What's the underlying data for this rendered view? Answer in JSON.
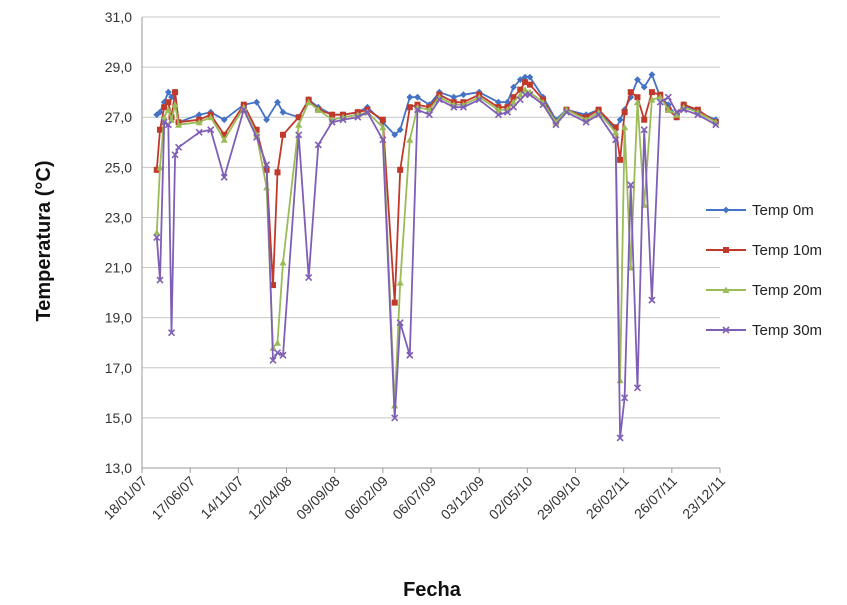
{
  "chart_data": {
    "type": "line",
    "title": "",
    "xlabel": "Fecha",
    "ylabel": "Temperatura (°C)",
    "ylim": [
      13.0,
      31.0
    ],
    "y_ticks": [
      "13,0",
      "15,0",
      "17,0",
      "19,0",
      "21,0",
      "23,0",
      "25,0",
      "27,0",
      "29,0",
      "31,0"
    ],
    "x_tick_labels": [
      "18/01/07",
      "17/06/07",
      "14/11/07",
      "12/04/08",
      "09/09/08",
      "06/02/09",
      "06/07/09",
      "03/12/09",
      "02/05/10",
      "29/09/10",
      "26/02/11",
      "26/07/11",
      "23/12/11"
    ],
    "x_ticks": [
      "2007-01-18",
      "2007-06-17",
      "2007-11-14",
      "2008-04-12",
      "2008-09-09",
      "2009-02-06",
      "2009-07-06",
      "2009-12-03",
      "2010-05-02",
      "2010-09-29",
      "2011-02-26",
      "2011-07-26",
      "2011-12-23"
    ],
    "xlim": [
      "2007-01-18",
      "2011-12-23"
    ],
    "grid": "horizontal",
    "legend_position": "right",
    "series": [
      {
        "name": "Temp 0m",
        "color": "#4472C4",
        "marker": "diamond",
        "points": [
          [
            "2007-03-05",
            27.1
          ],
          [
            "2007-03-15",
            27.2
          ],
          [
            "2007-03-28",
            27.6
          ],
          [
            "2007-04-10",
            28.0
          ],
          [
            "2007-04-20",
            27.8
          ],
          [
            "2007-05-01",
            28.0
          ],
          [
            "2007-05-12",
            26.8
          ],
          [
            "2007-07-15",
            27.1
          ],
          [
            "2007-08-20",
            27.2
          ],
          [
            "2007-10-01",
            26.9
          ],
          [
            "2007-12-01",
            27.5
          ],
          [
            "2008-01-10",
            27.6
          ],
          [
            "2008-02-10",
            26.9
          ],
          [
            "2008-03-15",
            27.6
          ],
          [
            "2008-04-01",
            27.2
          ],
          [
            "2008-05-20",
            27.0
          ],
          [
            "2008-06-20",
            27.7
          ],
          [
            "2008-07-20",
            27.4
          ],
          [
            "2008-09-01",
            27.1
          ],
          [
            "2008-10-05",
            27.1
          ],
          [
            "2008-11-20",
            27.2
          ],
          [
            "2008-12-20",
            27.4
          ],
          [
            "2009-02-06",
            26.8
          ],
          [
            "2009-03-15",
            26.3
          ],
          [
            "2009-04-01",
            26.5
          ],
          [
            "2009-05-01",
            27.8
          ],
          [
            "2009-05-25",
            27.8
          ],
          [
            "2009-07-01",
            27.5
          ],
          [
            "2009-08-01",
            28.0
          ],
          [
            "2009-09-15",
            27.8
          ],
          [
            "2009-10-15",
            27.9
          ],
          [
            "2009-12-03",
            28.0
          ],
          [
            "2010-02-01",
            27.6
          ],
          [
            "2010-03-01",
            27.6
          ],
          [
            "2010-03-20",
            28.2
          ],
          [
            "2010-04-10",
            28.5
          ],
          [
            "2010-04-25",
            28.6
          ],
          [
            "2010-05-10",
            28.6
          ],
          [
            "2010-06-20",
            27.8
          ],
          [
            "2010-07-30",
            26.9
          ],
          [
            "2010-09-01",
            27.3
          ],
          [
            "2010-11-01",
            27.1
          ],
          [
            "2010-12-10",
            27.3
          ],
          [
            "2011-02-01",
            26.5
          ],
          [
            "2011-02-15",
            26.9
          ],
          [
            "2011-03-01",
            27.3
          ],
          [
            "2011-03-20",
            27.8
          ],
          [
            "2011-04-10",
            28.5
          ],
          [
            "2011-05-01",
            28.2
          ],
          [
            "2011-05-25",
            28.7
          ],
          [
            "2011-06-20",
            27.8
          ],
          [
            "2011-07-15",
            27.5
          ],
          [
            "2011-08-10",
            27.0
          ],
          [
            "2011-09-01",
            27.5
          ],
          [
            "2011-10-15",
            27.2
          ],
          [
            "2011-12-10",
            26.9
          ]
        ]
      },
      {
        "name": "Temp 10m",
        "color": "#C0392B",
        "marker": "square",
        "points": [
          [
            "2007-03-05",
            24.9
          ],
          [
            "2007-03-15",
            26.5
          ],
          [
            "2007-03-28",
            27.4
          ],
          [
            "2007-04-10",
            27.6
          ],
          [
            "2007-04-20",
            27.0
          ],
          [
            "2007-05-01",
            28.0
          ],
          [
            "2007-05-12",
            26.8
          ],
          [
            "2007-07-15",
            26.9
          ],
          [
            "2007-08-20",
            27.1
          ],
          [
            "2007-10-01",
            26.3
          ],
          [
            "2007-12-01",
            27.5
          ],
          [
            "2008-01-10",
            26.5
          ],
          [
            "2008-02-10",
            24.9
          ],
          [
            "2008-03-01",
            20.3
          ],
          [
            "2008-03-15",
            24.8
          ],
          [
            "2008-04-01",
            26.3
          ],
          [
            "2008-05-20",
            27.0
          ],
          [
            "2008-06-20",
            27.7
          ],
          [
            "2008-07-20",
            27.3
          ],
          [
            "2008-09-01",
            27.1
          ],
          [
            "2008-10-05",
            27.1
          ],
          [
            "2008-11-20",
            27.2
          ],
          [
            "2008-12-20",
            27.3
          ],
          [
            "2009-02-06",
            26.9
          ],
          [
            "2009-03-15",
            19.6
          ],
          [
            "2009-04-01",
            24.9
          ],
          [
            "2009-05-01",
            27.4
          ],
          [
            "2009-05-25",
            27.5
          ],
          [
            "2009-07-01",
            27.4
          ],
          [
            "2009-08-01",
            27.9
          ],
          [
            "2009-09-15",
            27.6
          ],
          [
            "2009-10-15",
            27.6
          ],
          [
            "2009-12-03",
            27.9
          ],
          [
            "2010-02-01",
            27.4
          ],
          [
            "2010-03-01",
            27.4
          ],
          [
            "2010-03-20",
            27.8
          ],
          [
            "2010-04-10",
            28.1
          ],
          [
            "2010-04-25",
            28.4
          ],
          [
            "2010-05-10",
            28.3
          ],
          [
            "2010-06-20",
            27.7
          ],
          [
            "2010-07-30",
            26.8
          ],
          [
            "2010-09-01",
            27.3
          ],
          [
            "2010-11-01",
            27.0
          ],
          [
            "2010-12-10",
            27.3
          ],
          [
            "2011-02-01",
            26.6
          ],
          [
            "2011-02-15",
            25.3
          ],
          [
            "2011-03-01",
            27.2
          ],
          [
            "2011-03-20",
            28.0
          ],
          [
            "2011-04-10",
            27.8
          ],
          [
            "2011-05-01",
            26.9
          ],
          [
            "2011-05-25",
            28.0
          ],
          [
            "2011-06-20",
            27.9
          ],
          [
            "2011-07-15",
            27.3
          ],
          [
            "2011-08-10",
            27.0
          ],
          [
            "2011-09-01",
            27.5
          ],
          [
            "2011-10-15",
            27.3
          ],
          [
            "2011-12-10",
            26.8
          ]
        ]
      },
      {
        "name": "Temp 20m",
        "color": "#9BBB59",
        "marker": "triangle",
        "points": [
          [
            "2007-03-05",
            22.4
          ],
          [
            "2007-03-15",
            25.0
          ],
          [
            "2007-03-28",
            27.0
          ],
          [
            "2007-04-10",
            27.3
          ],
          [
            "2007-04-20",
            26.9
          ],
          [
            "2007-05-01",
            27.5
          ],
          [
            "2007-05-12",
            26.7
          ],
          [
            "2007-07-15",
            26.8
          ],
          [
            "2007-08-20",
            27.0
          ],
          [
            "2007-10-01",
            26.1
          ],
          [
            "2007-12-01",
            27.4
          ],
          [
            "2008-01-10",
            26.3
          ],
          [
            "2008-02-10",
            24.2
          ],
          [
            "2008-03-01",
            17.8
          ],
          [
            "2008-03-15",
            18.0
          ],
          [
            "2008-04-01",
            21.2
          ],
          [
            "2008-05-20",
            26.7
          ],
          [
            "2008-06-20",
            27.6
          ],
          [
            "2008-07-20",
            27.3
          ],
          [
            "2008-09-01",
            26.9
          ],
          [
            "2008-10-05",
            27.0
          ],
          [
            "2008-11-20",
            27.1
          ],
          [
            "2008-12-20",
            27.2
          ],
          [
            "2009-02-06",
            26.6
          ],
          [
            "2009-03-15",
            15.5
          ],
          [
            "2009-04-01",
            20.4
          ],
          [
            "2009-05-01",
            26.1
          ],
          [
            "2009-05-25",
            27.4
          ],
          [
            "2009-07-01",
            27.3
          ],
          [
            "2009-08-01",
            27.8
          ],
          [
            "2009-09-15",
            27.5
          ],
          [
            "2009-10-15",
            27.5
          ],
          [
            "2009-12-03",
            27.8
          ],
          [
            "2010-02-01",
            27.3
          ],
          [
            "2010-03-01",
            27.3
          ],
          [
            "2010-03-20",
            27.6
          ],
          [
            "2010-04-10",
            27.9
          ],
          [
            "2010-04-25",
            28.1
          ],
          [
            "2010-05-10",
            28.0
          ],
          [
            "2010-06-20",
            27.6
          ],
          [
            "2010-07-30",
            26.8
          ],
          [
            "2010-09-01",
            27.3
          ],
          [
            "2010-11-01",
            26.9
          ],
          [
            "2010-12-10",
            27.2
          ],
          [
            "2011-02-01",
            26.4
          ],
          [
            "2011-02-15",
            16.5
          ],
          [
            "2011-03-01",
            26.6
          ],
          [
            "2011-03-20",
            21.0
          ],
          [
            "2011-04-10",
            27.6
          ],
          [
            "2011-05-01",
            23.5
          ],
          [
            "2011-05-25",
            27.7
          ],
          [
            "2011-06-20",
            27.8
          ],
          [
            "2011-07-15",
            27.3
          ],
          [
            "2011-08-10",
            27.1
          ],
          [
            "2011-09-01",
            27.4
          ],
          [
            "2011-10-15",
            27.2
          ],
          [
            "2011-12-10",
            26.8
          ]
        ]
      },
      {
        "name": "Temp 30m",
        "color": "#7F5FB5",
        "marker": "x",
        "points": [
          [
            "2007-03-05",
            22.2
          ],
          [
            "2007-03-15",
            20.5
          ],
          [
            "2007-03-28",
            26.8
          ],
          [
            "2007-04-10",
            26.7
          ],
          [
            "2007-04-20",
            18.4
          ],
          [
            "2007-05-01",
            25.5
          ],
          [
            "2007-05-12",
            25.8
          ],
          [
            "2007-07-15",
            26.4
          ],
          [
            "2007-08-20",
            26.5
          ],
          [
            "2007-10-01",
            24.6
          ],
          [
            "2007-12-01",
            27.3
          ],
          [
            "2008-01-10",
            26.2
          ],
          [
            "2008-02-10",
            25.1
          ],
          [
            "2008-03-01",
            17.3
          ],
          [
            "2008-03-15",
            17.6
          ],
          [
            "2008-04-01",
            17.5
          ],
          [
            "2008-05-20",
            26.3
          ],
          [
            "2008-06-20",
            20.6
          ],
          [
            "2008-07-20",
            25.9
          ],
          [
            "2008-09-01",
            26.8
          ],
          [
            "2008-10-05",
            26.9
          ],
          [
            "2008-11-20",
            27.0
          ],
          [
            "2008-12-20",
            27.2
          ],
          [
            "2009-02-06",
            26.1
          ],
          [
            "2009-03-15",
            15.0
          ],
          [
            "2009-04-01",
            18.8
          ],
          [
            "2009-05-01",
            17.5
          ],
          [
            "2009-05-25",
            27.3
          ],
          [
            "2009-07-01",
            27.1
          ],
          [
            "2009-08-01",
            27.7
          ],
          [
            "2009-09-15",
            27.4
          ],
          [
            "2009-10-15",
            27.4
          ],
          [
            "2009-12-03",
            27.7
          ],
          [
            "2010-02-01",
            27.1
          ],
          [
            "2010-03-01",
            27.2
          ],
          [
            "2010-03-20",
            27.4
          ],
          [
            "2010-04-10",
            27.7
          ],
          [
            "2010-04-25",
            27.9
          ],
          [
            "2010-05-10",
            27.9
          ],
          [
            "2010-06-20",
            27.5
          ],
          [
            "2010-07-30",
            26.7
          ],
          [
            "2010-09-01",
            27.2
          ],
          [
            "2010-11-01",
            26.8
          ],
          [
            "2010-12-10",
            27.1
          ],
          [
            "2011-02-01",
            26.1
          ],
          [
            "2011-02-15",
            14.2
          ],
          [
            "2011-03-01",
            15.8
          ],
          [
            "2011-03-20",
            24.3
          ],
          [
            "2011-04-10",
            16.2
          ],
          [
            "2011-05-01",
            26.5
          ],
          [
            "2011-05-25",
            19.7
          ],
          [
            "2011-06-20",
            27.6
          ],
          [
            "2011-07-15",
            27.8
          ],
          [
            "2011-08-10",
            27.2
          ],
          [
            "2011-09-01",
            27.3
          ],
          [
            "2011-10-15",
            27.1
          ],
          [
            "2011-12-10",
            26.7
          ]
        ]
      }
    ]
  }
}
